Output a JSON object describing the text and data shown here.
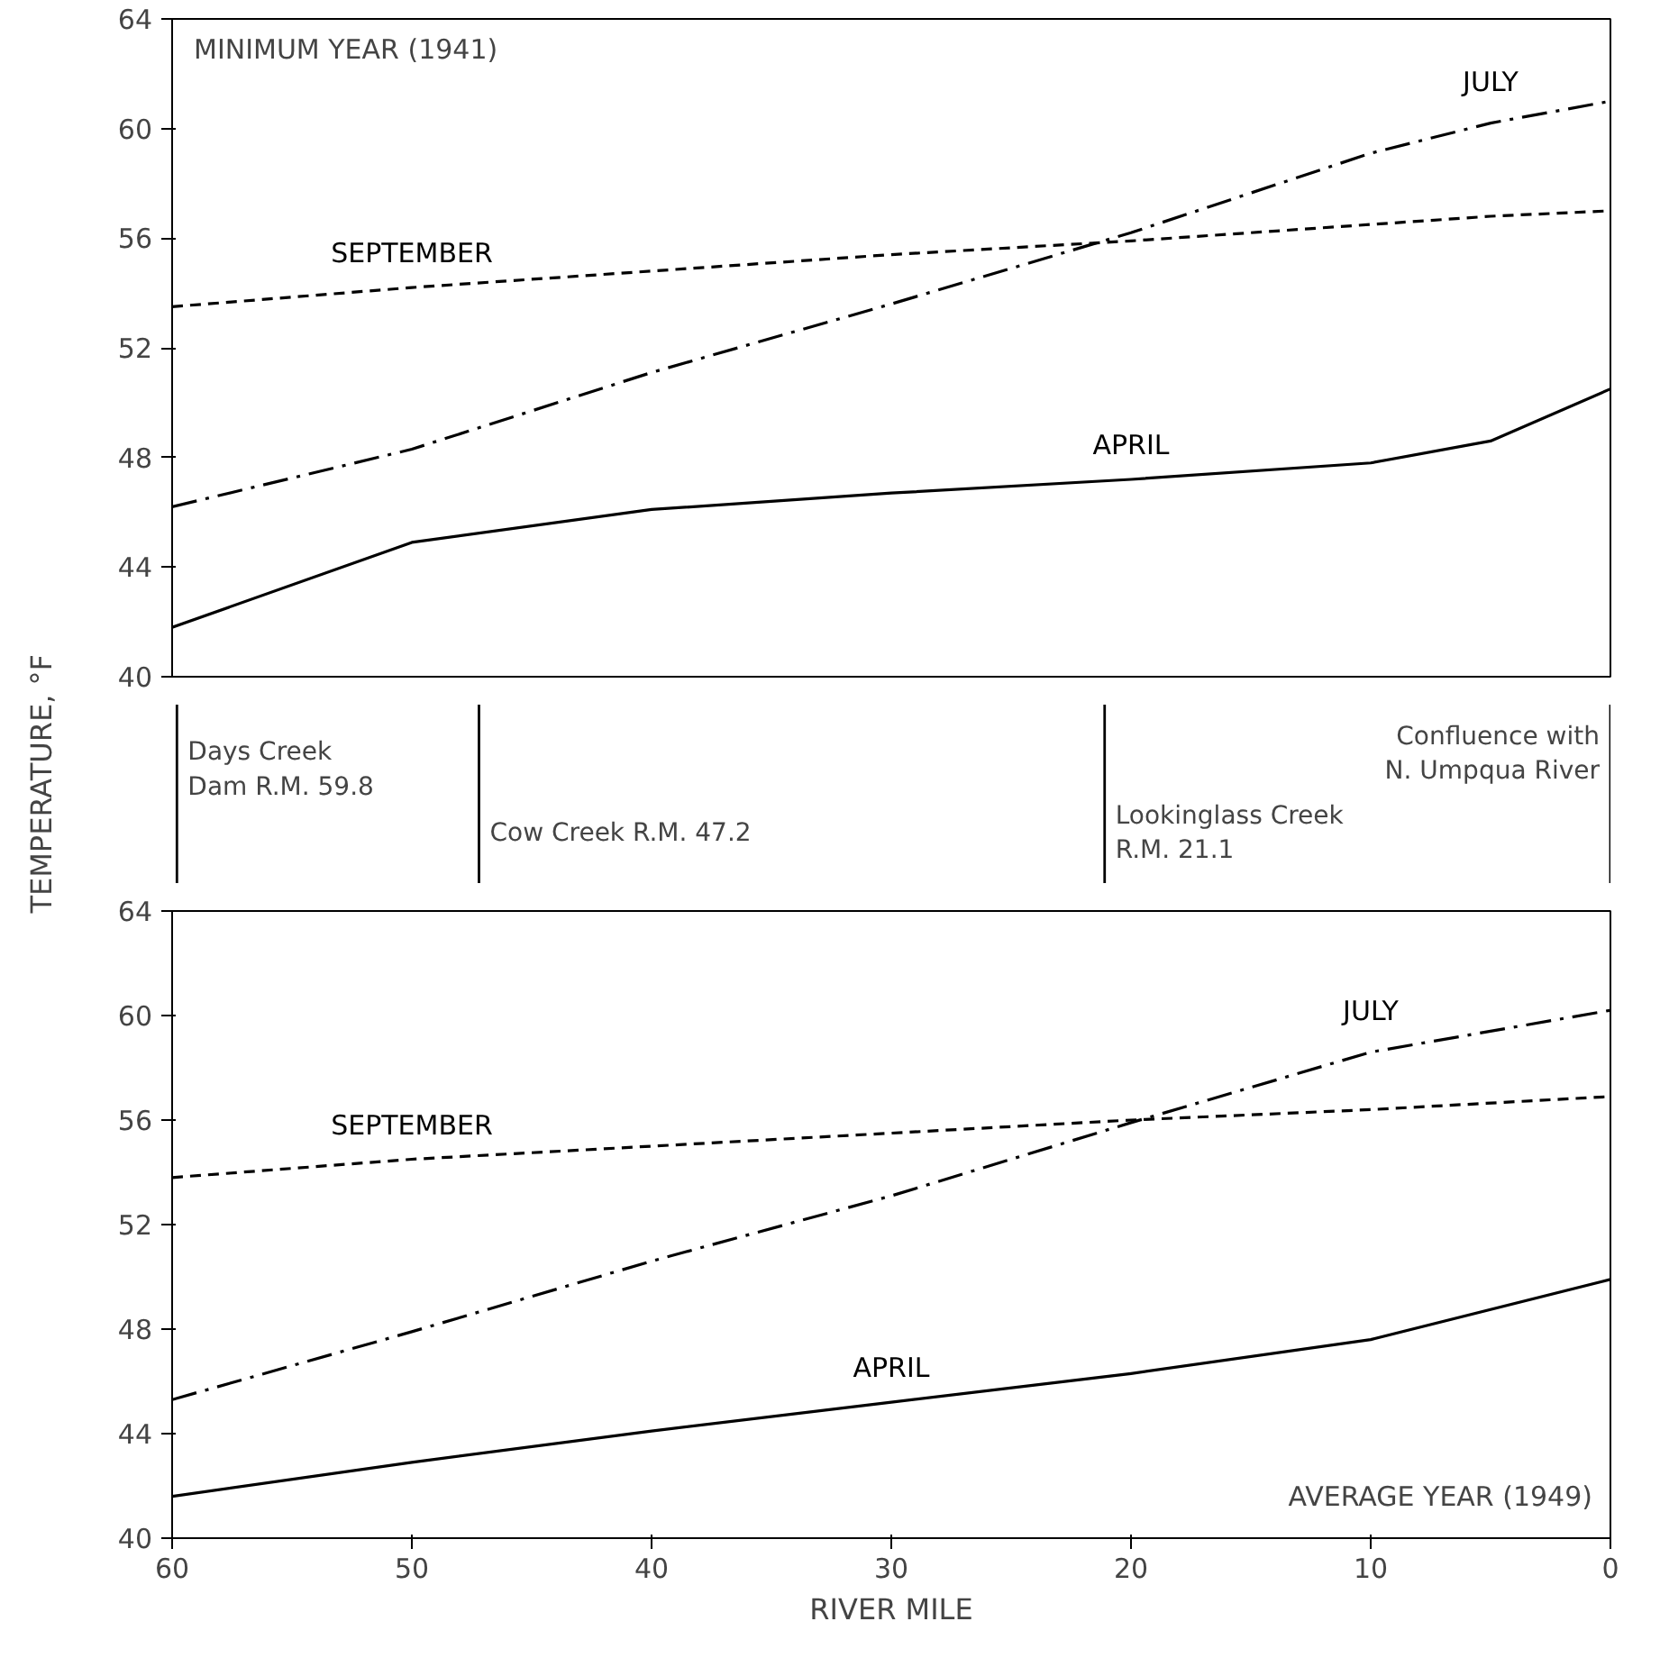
{
  "chart_data": [
    {
      "type": "line",
      "title": "MINIMUM YEAR (1941)",
      "ylabel": "TEMPERATURE, °F",
      "x": [
        60,
        50,
        40,
        30,
        20,
        10,
        5,
        0
      ],
      "xlim": [
        60,
        0
      ],
      "ylim": [
        40,
        64
      ],
      "yticks": [
        40,
        44,
        48,
        52,
        56,
        60,
        64
      ],
      "tick_labels": "y",
      "grid": false,
      "series": [
        {
          "name": "JULY",
          "color": "#000000",
          "line_style": "dashdot",
          "values": [
            46.2,
            48.3,
            51.1,
            53.6,
            56.2,
            59.1,
            60.2,
            61.0
          ]
        },
        {
          "name": "SEPTEMBER",
          "color": "#000000",
          "line_style": "dashed",
          "values": [
            53.5,
            54.2,
            54.8,
            55.4,
            55.9,
            56.5,
            56.8,
            57.0
          ]
        },
        {
          "name": "APRIL",
          "color": "#000000",
          "line_style": "solid",
          "values": [
            41.8,
            44.9,
            46.1,
            46.7,
            47.2,
            47.8,
            48.6,
            50.5
          ]
        }
      ]
    },
    {
      "type": "line",
      "title": "AVERAGE YEAR (1949)",
      "xlabel": "RIVER MILE",
      "x": [
        60,
        50,
        40,
        30,
        20,
        10,
        0
      ],
      "xlim": [
        60,
        0
      ],
      "ylim": [
        40,
        64
      ],
      "xticks": [
        60,
        50,
        40,
        30,
        20,
        10,
        0
      ],
      "yticks": [
        40,
        44,
        48,
        52,
        56,
        60,
        64
      ],
      "grid": false,
      "series": [
        {
          "name": "JULY",
          "color": "#000000",
          "line_style": "dashdot",
          "values": [
            45.3,
            47.9,
            50.6,
            53.1,
            55.9,
            58.6,
            60.2
          ]
        },
        {
          "name": "SEPTEMBER",
          "color": "#000000",
          "line_style": "dashed",
          "values": [
            53.8,
            54.5,
            55.0,
            55.5,
            56.0,
            56.4,
            56.9
          ]
        },
        {
          "name": "APRIL",
          "color": "#000000",
          "line_style": "solid",
          "values": [
            41.6,
            42.9,
            44.1,
            45.2,
            46.3,
            47.6,
            49.9
          ]
        }
      ],
      "ref_lines": [
        {
          "axis": "x",
          "value": 59.8,
          "label": "Days Creek\nDam R.M. 59.8"
        },
        {
          "axis": "x",
          "value": 47.2,
          "label": "Cow Creek R.M. 47.2"
        },
        {
          "axis": "x",
          "value": 21.1,
          "label": "Lookinglass Creek\nR.M. 21.1"
        },
        {
          "axis": "x",
          "value": 0,
          "label": "Confluence with\nN. Umpqua River"
        }
      ]
    }
  ]
}
